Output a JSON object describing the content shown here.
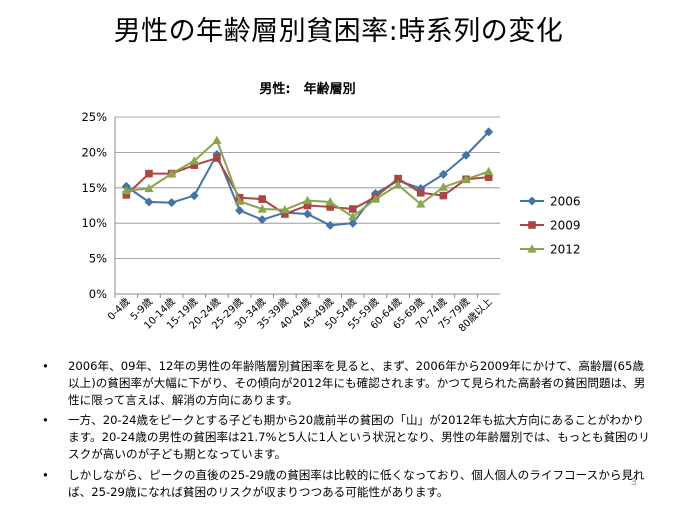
{
  "slide": {
    "title": "男性の年齢層別貧困率:時系列の変化",
    "page_number": "3",
    "bullet_symbol": "•",
    "bullets": [
      "2006年、09年、12年の男性の年齢階層別貧困率を見ると、まず、2006年から2009年にかけて、高齢層(65歳以上)の貧困率が大幅に下がり、その傾向が2012年にも確認されます。かつて見られた高齢者の貧困問題は、男性に限って言えば、解消の方向にあります。",
      "一方、20-24歳をピークとする子ども期から20歳前半の貧困の「山」が2012年も拡大方向にあることがわかります。20-24歳の男性の貧困率は21.7%と5人に1人という状況となり、男性の年齢層別では、もっとも貧困のリスクが高いのが子ども期となっています。",
      "しかしながら、ピークの直後の25-29歳の貧困率は比較的に低くなっており、個人個人のライフコースから見れば、25-29歳になれば貧困のリスクが収まりつつある可能性があります。"
    ]
  },
  "chart_data": {
    "type": "line",
    "title": "男性:　年齢層別",
    "categories": [
      "0-4歳",
      "5-9歳",
      "10-14歳",
      "15-19歳",
      "20-24歳",
      "25-29歳",
      "30-34歳",
      "35-39歳",
      "40-49歳",
      "45-49歳",
      "50-54歳",
      "55-59歳",
      "60-64歳",
      "65-69歳",
      "70-74歳",
      "75-79歳",
      "80歳以上"
    ],
    "ylim": [
      0,
      25
    ],
    "yticks": [
      "0%",
      "5%",
      "10%",
      "15%",
      "20%",
      "25%"
    ],
    "yticks_values": [
      0,
      5,
      10,
      15,
      20,
      25
    ],
    "grid": true,
    "legend_position": "right",
    "series": [
      {
        "name": "2006",
        "color": "#4572A7",
        "marker": "diamond",
        "values": [
          15.2,
          13.0,
          12.9,
          13.9,
          19.7,
          11.8,
          10.5,
          11.5,
          11.3,
          9.7,
          10.0,
          14.2,
          16.0,
          14.9,
          16.9,
          19.6,
          22.9
        ]
      },
      {
        "name": "2009",
        "color": "#AA4643",
        "marker": "square",
        "values": [
          14.0,
          17.0,
          17.0,
          18.2,
          19.2,
          13.6,
          13.4,
          11.3,
          12.5,
          12.3,
          12.0,
          13.7,
          16.3,
          14.3,
          13.9,
          16.2,
          16.5
        ]
      },
      {
        "name": "2012",
        "color": "#89A54E",
        "marker": "triangle",
        "values": [
          14.6,
          14.9,
          17.0,
          18.8,
          21.7,
          13.1,
          12.0,
          11.9,
          13.2,
          13.0,
          10.9,
          13.4,
          15.4,
          12.7,
          15.1,
          16.2,
          17.3
        ]
      }
    ]
  }
}
